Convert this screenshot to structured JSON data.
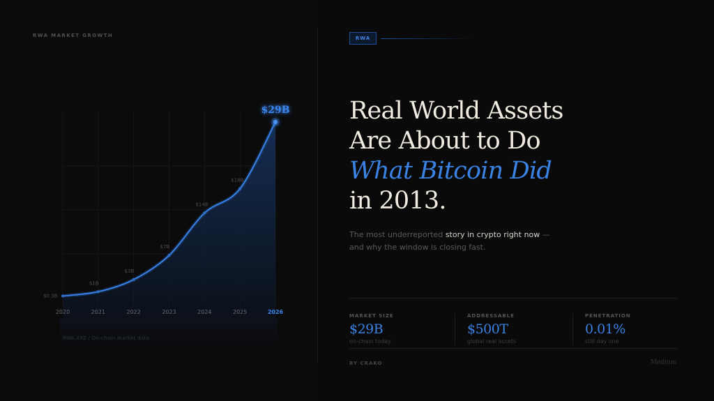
{
  "section_label": "RWA MARKET GROWTH",
  "tag": "RWA",
  "headline": {
    "line1": "Real World Assets",
    "line2": "Are About to Do",
    "line3": "What Bitcoin Did",
    "line4": "in 2013."
  },
  "subtitle": {
    "part1": "The most underreported ",
    "highlight1": "story in crypto right now",
    "part2": " — and why the window is closing fast."
  },
  "stats": [
    {
      "label": "MARKET SIZE",
      "value": "$29B",
      "note": "on-chain today"
    },
    {
      "label": "ADDRESSABLE",
      "value": "$500T",
      "note": "global real assets"
    },
    {
      "label": "PENETRATION",
      "value": "0.01%",
      "note": "still day one"
    }
  ],
  "byline": "BY CRAKO",
  "platform": "Medium",
  "source": "RWA.XYZ / On-chain market data",
  "colors": {
    "accent": "#3a82e4",
    "background": "#0a0a0a"
  },
  "chart_data": {
    "type": "area",
    "title": "",
    "xlabel": "",
    "ylabel": "",
    "categories": [
      "2020",
      "2021",
      "2022",
      "2023",
      "2024",
      "2025",
      "2026"
    ],
    "points": [
      {
        "x": 2020.0,
        "y": 0.3,
        "label": "$0.3B"
      },
      {
        "x": 2021.0,
        "y": 1,
        "label": "$1B"
      },
      {
        "x": 2022.0,
        "y": 3,
        "label": "$3B"
      },
      {
        "x": 2023.0,
        "y": 7,
        "label": "$7B"
      },
      {
        "x": 2024.0,
        "y": 14,
        "label": "$14B"
      },
      {
        "x": 2025.0,
        "y": 18,
        "label": "$18B"
      },
      {
        "x": 2026.0,
        "y": 29,
        "label": "$29B"
      }
    ],
    "highlight_label": "$29B",
    "highlight_category": "2026",
    "xlim": [
      2020,
      2026
    ],
    "ylim": [
      0,
      29
    ],
    "grid": true
  }
}
